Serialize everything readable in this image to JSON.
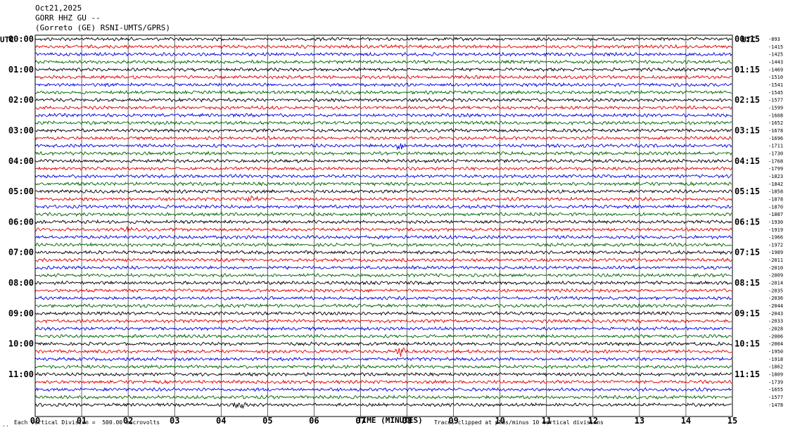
{
  "header": {
    "date": "Oct21,2025",
    "station": "GORR HHZ GU --",
    "network": "(Gorreto (GE) RSNI-UMTS/GPRS)"
  },
  "footer": {
    "corner": "..",
    "scale_note": "Each Vertical Division =  500.00 microvolts",
    "clip_note": "Traces clipped at plus/minus 10 vertical divisions"
  },
  "chart_data": {
    "type": "line",
    "title": "GORR HHZ GU --",
    "xlabel": "TIME (MINUTES)",
    "left_axis_title": "UTC",
    "right_axis_title": "UTC",
    "x_ticks": [
      "00",
      "01",
      "02",
      "03",
      "04",
      "05",
      "06",
      "07",
      "08",
      "09",
      "10",
      "11",
      "12",
      "13",
      "14",
      "15"
    ],
    "xlim": [
      0,
      15
    ],
    "traces_per_hour": 4,
    "trace_minutes": 15,
    "trace_colors": [
      "#000000",
      "#e00000",
      "#0000e0",
      "#006400"
    ],
    "left_hour_labels": [
      "00:00",
      "01:00",
      "02:00",
      "03:00",
      "04:00",
      "05:00",
      "06:00",
      "07:00",
      "08:00",
      "09:00",
      "10:00",
      "11:00"
    ],
    "right_hour_labels": [
      "00:15",
      "01:15",
      "02:15",
      "03:15",
      "04:15",
      "05:15",
      "06:15",
      "07:15",
      "08:15",
      "09:15",
      "10:15",
      "11:15"
    ],
    "trace_offsets": [
      "-893",
      "-1415",
      "-1425",
      "-1443",
      "-1469",
      "-1510",
      "-1541",
      "-1545",
      "-1577",
      "-1599",
      "-1608",
      "-1652",
      "-1678",
      "-1696",
      "-1711",
      "-1730",
      "-1768",
      "-1799",
      "-1823",
      "-1842",
      "-1858",
      "-1878",
      "-1870",
      "-1887",
      "-1930",
      "-1919",
      "-1966",
      "-1972",
      "-1989",
      "-2011",
      "-2010",
      "-2009",
      "-2014",
      "-2035",
      "-2036",
      "-2044",
      "-2043",
      "-2033",
      "-2028",
      "-2006",
      "-2004",
      "-1950",
      "-1918",
      "-1862",
      "-1809",
      "-1739",
      "-1655",
      "-1577",
      "-1478"
    ],
    "events": [
      {
        "trace": 21,
        "minute": 4.65,
        "amplitude": 1.6
      },
      {
        "trace": 14,
        "minute": 7.85,
        "amplitude": 1.4
      },
      {
        "trace": 41,
        "minute": 7.85,
        "amplitude": 2.0
      },
      {
        "trace": 48,
        "minute": 4.4,
        "amplitude": 1.6
      },
      {
        "trace": 25,
        "minute": 2.0,
        "amplitude": 1.0
      },
      {
        "trace": 35,
        "minute": 11.4,
        "amplitude": 1.0
      }
    ],
    "grid": true
  }
}
